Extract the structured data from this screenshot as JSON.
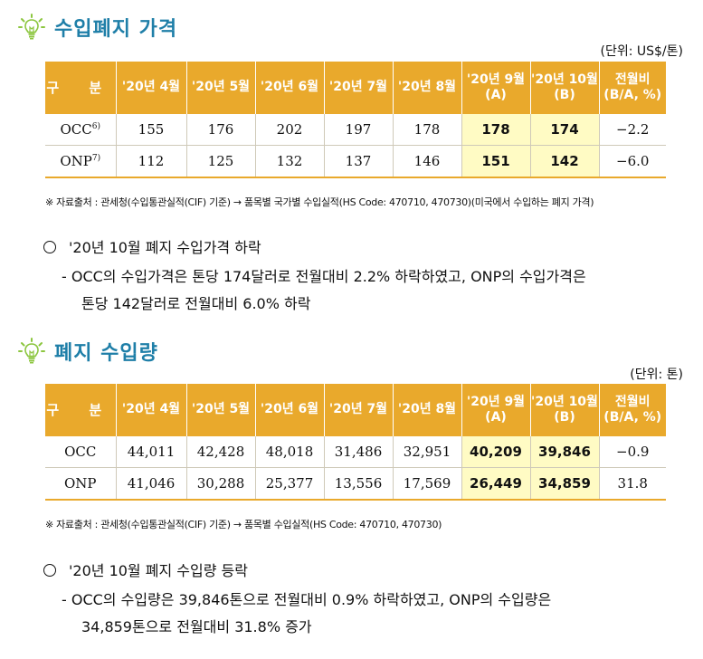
{
  "colors": {
    "header_bg": "#e9a92c",
    "highlight_bg": "#fffbc4",
    "title": "#1f7fa8"
  },
  "sections": [
    {
      "icon": "lightbulb-icon",
      "title": "수입폐지 가격",
      "unit": "(단위: US$/톤)",
      "headers": [
        "구 분",
        "'20년 4월",
        "'20년 5월",
        "'20년 6월",
        "'20년 7월",
        "'20년 8월"
      ],
      "header_a": [
        "'20년 9월",
        "(A)"
      ],
      "header_b": [
        "'20년 10월",
        "(B)"
      ],
      "header_ratio": [
        "전월비",
        "(B/A, %)"
      ],
      "rows": [
        {
          "label": "OCC",
          "sup": "6)",
          "values": [
            "155",
            "176",
            "202",
            "197",
            "178"
          ],
          "a": "178",
          "b": "174",
          "ratio": "−2.2"
        },
        {
          "label": "ONP",
          "sup": "7)",
          "values": [
            "112",
            "125",
            "132",
            "137",
            "146"
          ],
          "a": "151",
          "b": "142",
          "ratio": "−6.0"
        }
      ],
      "source": "※ 자료출처 : 관세청(수입통관실적(CIF) 기준) → 품목별 국가별 수입실적(HS Code: 470710, 470730)(미국에서 수입하는 폐지 가격)",
      "bullet": "'20년 10월 폐지 수입가격 하락",
      "detail": [
        "- OCC의 수입가격은 톤당 174달러로 전월대비 2.2% 하락하였고, ONP의 수입가격은",
        "톤당 142달러로 전월대비 6.0% 하락"
      ]
    },
    {
      "icon": "lightbulb-icon",
      "title": "폐지 수입량",
      "unit": "(단위: 톤)",
      "headers": [
        "구 분",
        "'20년 4월",
        "'20년 5월",
        "'20년 6월",
        "'20년 7월",
        "'20년 8월"
      ],
      "header_a": [
        "'20년 9월",
        "(A)"
      ],
      "header_b": [
        "'20년 10월",
        "(B)"
      ],
      "header_ratio": [
        "전월비",
        "(B/A, %)"
      ],
      "rows": [
        {
          "label": "OCC",
          "sup": "",
          "values": [
            "44,011",
            "42,428",
            "48,018",
            "31,486",
            "32,951"
          ],
          "a": "40,209",
          "b": "39,846",
          "ratio": "−0.9"
        },
        {
          "label": "ONP",
          "sup": "",
          "values": [
            "41,046",
            "30,288",
            "25,377",
            "13,556",
            "17,569"
          ],
          "a": "26,449",
          "b": "34,859",
          "ratio": "31.8"
        }
      ],
      "source": "※ 자료출처 : 관세청(수입통관실적(CIF) 기준) → 품목별 수입실적(HS Code: 470710, 470730)",
      "bullet": "'20년 10월 폐지 수입량 등락",
      "detail": [
        "- OCC의 수입량은 39,846톤으로 전월대비 0.9% 하락하였고, ONP의 수입량은",
        "34,859톤으로 전월대비 31.8% 증가"
      ]
    }
  ]
}
